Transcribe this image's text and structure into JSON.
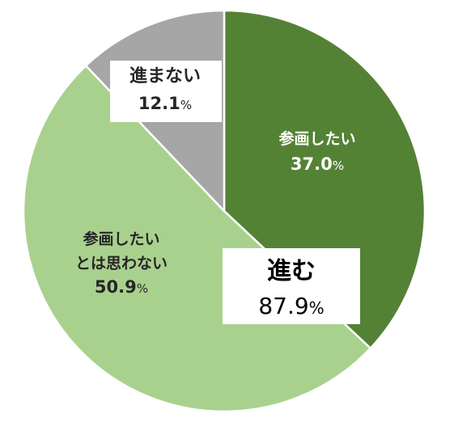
{
  "chart_data": {
    "type": "pie",
    "title": "",
    "start_angle_deg": 0,
    "direction": "clockwise",
    "slices": [
      {
        "label": "参画したい",
        "value": 37.0,
        "value_text": "37.0",
        "color": "#548235",
        "label_color": "#ffffff"
      },
      {
        "label": "参画したい\nとは思わない",
        "value": 50.9,
        "value_text": "50.9",
        "color": "#a9d18e",
        "label_color": "#262626"
      },
      {
        "label": "進まない",
        "value": 12.1,
        "value_text": "12.1",
        "color": "#a6a6a6",
        "label_color": "#262626"
      }
    ],
    "summary_box": {
      "label": "進む",
      "value": 87.9,
      "value_text": "87.9"
    },
    "percent_sign": "%",
    "slice_border_color": "#ffffff"
  }
}
